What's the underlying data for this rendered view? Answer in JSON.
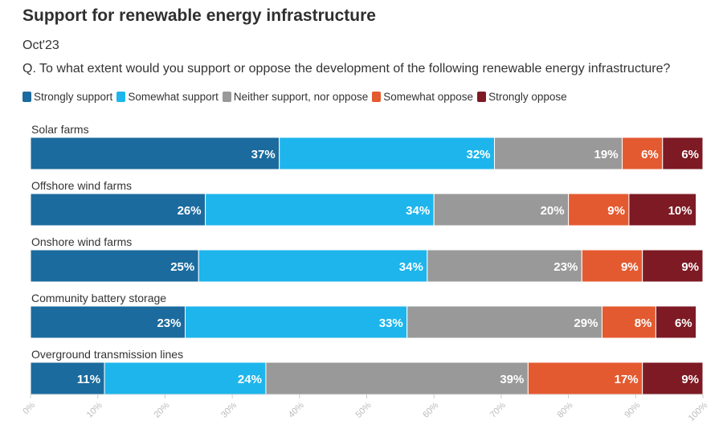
{
  "title": "Support for renewable energy infrastructure",
  "subtitle": "Oct'23",
  "question": "Q. To what extent would you support or oppose the development of the following renewable energy infrastructure?",
  "chart_data": {
    "type": "bar",
    "orientation": "horizontal",
    "stacked": true,
    "categories": [
      "Solar farms",
      "Offshore wind farms",
      "Onshore wind farms",
      "Community battery storage",
      "Overground transmission lines"
    ],
    "series": [
      {
        "name": "Strongly support",
        "color": "#1b6b9e",
        "values": [
          37,
          26,
          25,
          23,
          11
        ]
      },
      {
        "name": "Somewhat support",
        "color": "#1db5ec",
        "values": [
          32,
          34,
          34,
          33,
          24
        ]
      },
      {
        "name": "Neither support, nor oppose",
        "color": "#999999",
        "values": [
          19,
          20,
          23,
          29,
          39
        ]
      },
      {
        "name": "Somewhat oppose",
        "color": "#e45a30",
        "values": [
          6,
          9,
          9,
          8,
          17
        ]
      },
      {
        "name": "Strongly oppose",
        "color": "#7d1a24",
        "values": [
          6,
          10,
          9,
          6,
          9
        ]
      }
    ],
    "xlim": [
      0,
      100
    ],
    "x_ticks": [
      "0%",
      "10%",
      "20%",
      "30%",
      "40%",
      "50%",
      "60%",
      "70%",
      "80%",
      "90%",
      "100%"
    ],
    "legend": "top-left",
    "grid": false
  }
}
